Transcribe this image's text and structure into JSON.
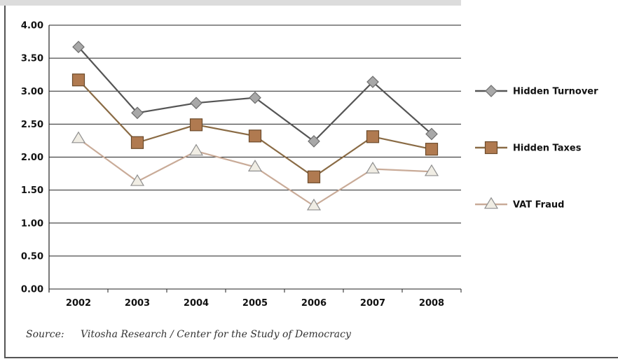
{
  "chart_data": {
    "type": "line",
    "categories": [
      "2002",
      "2003",
      "2004",
      "2005",
      "2006",
      "2007",
      "2008"
    ],
    "ylim": [
      0,
      4
    ],
    "yticks": [
      "0.00",
      "0.50",
      "1.00",
      "1.50",
      "2.00",
      "2.50",
      "3.00",
      "3.50",
      "4.00"
    ],
    "grid": true,
    "legend_position": "right",
    "series": [
      {
        "name": "Hidden Turnover",
        "values": [
          3.67,
          2.67,
          2.82,
          2.9,
          2.24,
          3.14,
          2.35
        ],
        "color": "#555555",
        "marker": "diamond",
        "marker_color": "#a8a8a8"
      },
      {
        "name": "Hidden Taxes",
        "values": [
          3.17,
          2.22,
          2.49,
          2.32,
          1.7,
          2.31,
          2.12
        ],
        "color": "#8a6b45",
        "marker": "square",
        "marker_color": "#b07a50"
      },
      {
        "name": "VAT Fraud",
        "values": [
          2.28,
          1.63,
          2.09,
          1.85,
          1.26,
          1.82,
          1.78
        ],
        "color": "#c9ab98",
        "marker": "triangle",
        "marker_color": "#f0ede4"
      }
    ]
  },
  "source": {
    "label": "Source:",
    "text": "Vitosha Research / Center for the Study of Democracy"
  }
}
